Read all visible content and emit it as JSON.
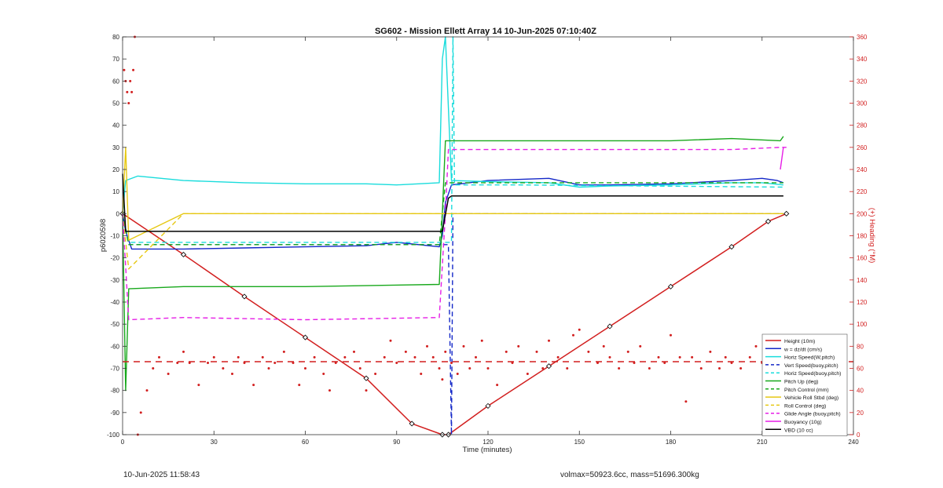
{
  "chart_data": {
    "type": "line",
    "title": "SG602 - Mission Ellett Array 14 10-Jun-2025 07:10:40Z",
    "xlabel": "Time (minutes)",
    "ylabel": "p6020598",
    "y2label": "(+) Heading (°M)",
    "xlim": [
      0,
      240
    ],
    "ylim": [
      -100,
      80
    ],
    "y2lim": [
      0,
      360
    ],
    "xticks": [
      0,
      30,
      60,
      90,
      120,
      150,
      180,
      210,
      240
    ],
    "yticks": [
      -100,
      -90,
      -80,
      -70,
      -60,
      -50,
      -40,
      -30,
      -20,
      -10,
      0,
      10,
      20,
      30,
      40,
      50,
      60,
      70,
      80
    ],
    "y2ticks": [
      0,
      20,
      40,
      60,
      80,
      100,
      120,
      140,
      160,
      180,
      200,
      220,
      240,
      260,
      280,
      300,
      320,
      340,
      360
    ],
    "grid": false,
    "legend_position": "bottom-right",
    "series": [
      {
        "name": "Height (10m)",
        "color": "#d21f1f",
        "style": "solid-markers",
        "x": [
          0,
          20,
          40,
          60,
          80,
          95,
          105,
          107,
          120,
          140,
          160,
          180,
          200,
          212,
          218
        ],
        "y": [
          0,
          -18.5,
          -37.5,
          -56,
          -74.5,
          -95,
          -100,
          -100,
          -87,
          -69,
          -51,
          -33,
          -15,
          -3.5,
          0
        ]
      },
      {
        "name": "w = dz/dt (cm/s)",
        "color": "#1428c8",
        "style": "solid",
        "x": [
          0,
          1,
          3,
          20,
          40,
          60,
          80,
          90,
          104,
          105,
          106,
          108,
          120,
          140,
          150,
          160,
          180,
          200,
          210,
          215,
          217
        ],
        "y": [
          0,
          -8,
          -16,
          -16,
          -15.5,
          -15,
          -14.5,
          -13,
          -15,
          -10,
          5,
          13,
          15,
          16,
          13,
          13,
          13.5,
          15,
          16,
          15,
          14
        ]
      },
      {
        "name": "Horiz Speed(W,pitch)",
        "color": "#19dcdc",
        "style": "solid",
        "x": [
          0,
          1,
          5,
          20,
          40,
          60,
          80,
          90,
          104,
          105,
          106,
          108,
          120,
          140,
          150,
          160,
          180,
          200,
          210,
          217
        ],
        "y": [
          0,
          15,
          17,
          15,
          14,
          13.5,
          13.5,
          13,
          14,
          70,
          80,
          15,
          14.5,
          14,
          12,
          12.5,
          13,
          14,
          14,
          13
        ]
      },
      {
        "name": "Vert Speed(buoy,pitch)",
        "color": "#1428c8",
        "style": "dashed",
        "x": [
          0,
          2,
          50,
          104,
          107,
          108,
          108.5,
          109,
          217
        ],
        "y": [
          0,
          -14,
          -14,
          -14,
          -14,
          -100,
          0,
          0,
          0
        ]
      },
      {
        "name": "Horiz Speed(buoy,pitch)",
        "color": "#19dcdc",
        "style": "dashed",
        "x": [
          0,
          2,
          104,
          108,
          108.5,
          109,
          130,
          217
        ],
        "y": [
          0,
          -13,
          -13,
          -13,
          80,
          13,
          13,
          12
        ]
      },
      {
        "name": "Pitch Up (deg)",
        "color": "#18a81c",
        "style": "solid",
        "x": [
          0,
          1,
          2,
          20,
          60,
          104,
          105,
          106,
          140,
          180,
          200,
          216,
          217
        ],
        "y": [
          0,
          -80,
          -34,
          -33,
          -33,
          -32,
          0,
          33,
          33,
          33,
          34,
          33,
          35
        ]
      },
      {
        "name": "Pitch Control (mm)",
        "color": "#18a81c",
        "style": "dashed",
        "x": [
          0,
          2,
          104,
          106,
          217
        ],
        "y": [
          0,
          -14,
          -14,
          14,
          14
        ]
      },
      {
        "name": "Vehicle Roll Stbd (deg)",
        "color": "#e6c814",
        "style": "solid",
        "x": [
          0,
          1,
          2,
          20,
          40,
          60,
          80,
          100,
          106,
          107,
          120,
          140,
          160,
          180,
          200,
          217
        ],
        "y": [
          0,
          30,
          -12,
          0,
          0,
          0,
          0,
          0,
          0,
          0,
          0,
          0,
          0,
          0,
          0,
          0
        ]
      },
      {
        "name": "Roll Control (deg)",
        "color": "#e6c814",
        "style": "dashed",
        "x": [
          0,
          2,
          20,
          40,
          60,
          80,
          100,
          106,
          120,
          140,
          160,
          180,
          200,
          217
        ],
        "y": [
          0,
          -25,
          0,
          0,
          0,
          0,
          0,
          0,
          0,
          0,
          0,
          0,
          0,
          0
        ]
      },
      {
        "name": "Glide Angle (buoy,pitch)",
        "color": "#e61ee6",
        "style": "dashed",
        "x": [
          0,
          2,
          20,
          60,
          104,
          106,
          107,
          120,
          160,
          200,
          216,
          217
        ],
        "y": [
          0,
          -48,
          -47,
          -48,
          -47,
          0,
          29,
          29,
          29,
          29,
          30,
          30
        ]
      },
      {
        "name": "Buoyancy (10g)",
        "color": "#e61ee6",
        "style": "solid",
        "x": [
          216,
          217,
          218
        ],
        "y": [
          20,
          30,
          30
        ]
      },
      {
        "name": "VBD (10 cc)",
        "color": "#000000",
        "style": "solid",
        "x": [
          0,
          1,
          2,
          104,
          105,
          107,
          108,
          217
        ],
        "y": [
          18,
          -8,
          -8,
          -8,
          -8,
          7,
          8,
          8
        ]
      }
    ],
    "heading": {
      "color": "#d21f1f",
      "axis": "right",
      "mean_line": 66,
      "x": [
        0.5,
        1,
        1.5,
        2,
        2.5,
        3,
        3.5,
        4,
        5,
        6,
        8,
        10,
        12,
        15,
        18,
        20,
        22,
        25,
        28,
        30,
        33,
        36,
        38,
        40,
        43,
        46,
        48,
        50,
        53,
        56,
        58,
        60,
        63,
        66,
        68,
        70,
        73,
        76,
        78,
        80,
        83,
        86,
        88,
        90,
        93,
        96,
        98,
        100,
        102,
        104,
        105,
        106,
        108,
        110,
        112,
        114,
        116,
        118,
        120,
        123,
        126,
        128,
        130,
        133,
        136,
        138,
        140,
        143,
        146,
        148,
        150,
        153,
        156,
        158,
        160,
        163,
        166,
        168,
        170,
        173,
        176,
        178,
        180,
        183,
        185,
        187,
        190,
        193,
        196,
        198,
        200,
        203,
        206,
        208,
        210,
        213,
        215,
        216
      ],
      "y": [
        330,
        320,
        310,
        300,
        320,
        310,
        330,
        360,
        0,
        20,
        40,
        60,
        70,
        55,
        65,
        75,
        65,
        45,
        65,
        70,
        60,
        55,
        70,
        65,
        45,
        70,
        60,
        65,
        75,
        65,
        45,
        60,
        70,
        55,
        40,
        65,
        70,
        75,
        60,
        40,
        55,
        70,
        85,
        65,
        75,
        70,
        55,
        80,
        70,
        60,
        50,
        75,
        65,
        55,
        80,
        60,
        70,
        85,
        60,
        45,
        75,
        65,
        80,
        55,
        75,
        60,
        85,
        70,
        60,
        90,
        95,
        75,
        65,
        80,
        70,
        60,
        75,
        65,
        80,
        60,
        70,
        65,
        90,
        70,
        30,
        70,
        60,
        75,
        60,
        70,
        65,
        60,
        70,
        80,
        65,
        70,
        60,
        65
      ]
    }
  },
  "footer": {
    "timestamp": "10-Jun-2025 11:58:43",
    "info": "volmax=50923.6cc, mass=51696.300kg"
  }
}
